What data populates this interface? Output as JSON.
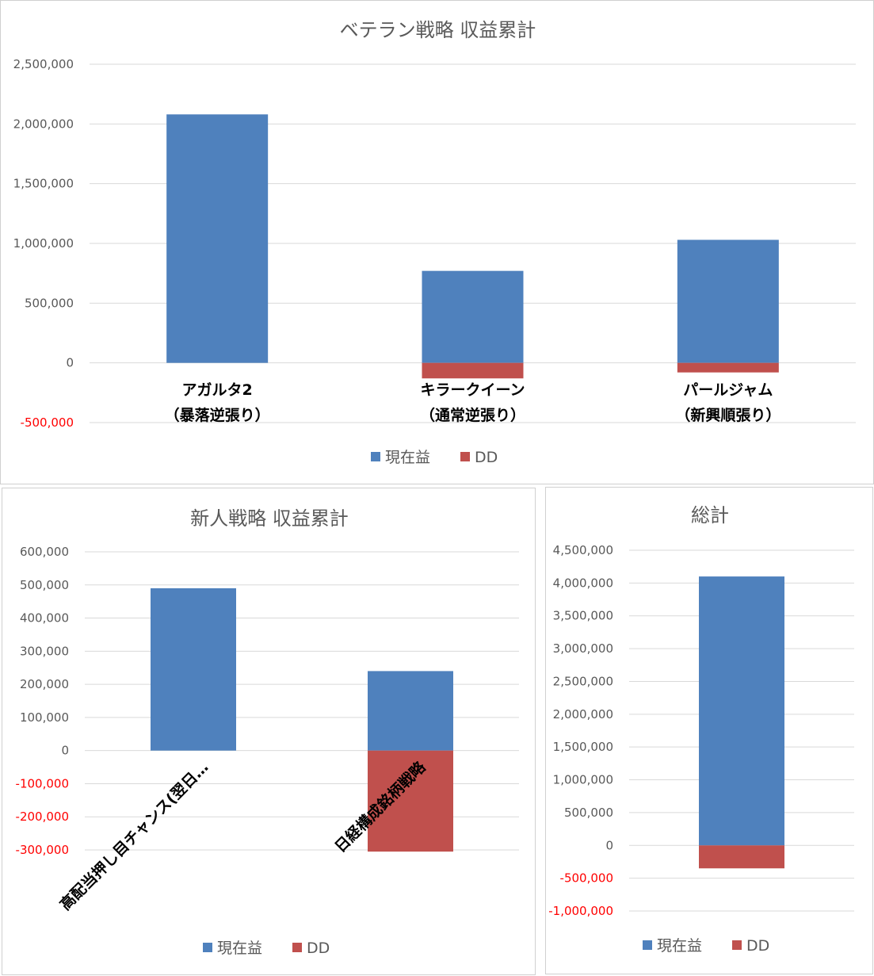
{
  "colors": {
    "current": "#4F81BD",
    "dd": "#C0504D",
    "grid": "#D9D9D9",
    "tick_positive": "#595959",
    "tick_negative": "#FF0000"
  },
  "legend": {
    "current": "現在益",
    "dd": "DD"
  },
  "chart_data": [
    {
      "type": "bar",
      "stacked": true,
      "title": "ベテラン戦略 収益累計",
      "categories": [
        [
          "アガルタ2",
          "（暴落逆張り）"
        ],
        [
          "キラークイーン",
          "（通常逆張り）"
        ],
        [
          "パールジャム",
          "（新興順張り）"
        ]
      ],
      "series": [
        {
          "name": "現在益",
          "values": [
            2080000,
            770000,
            1030000
          ]
        },
        {
          "name": "DD",
          "values": [
            0,
            -130000,
            -80000
          ]
        }
      ],
      "ylim": [
        -500000,
        2500000
      ],
      "yticks": [
        "2,500,000",
        "2,000,000",
        "1,500,000",
        "1,000,000",
        "500,000",
        "0",
        "-500,000"
      ],
      "grid": true,
      "legend_position": "bottom"
    },
    {
      "type": "bar",
      "stacked": true,
      "title": "新人戦略 収益累計",
      "categories": [
        [
          "高配当押し目チャンス(翌日…"
        ],
        [
          "日経構成銘柄戦略"
        ]
      ],
      "series": [
        {
          "name": "現在益",
          "values": [
            490000,
            240000
          ]
        },
        {
          "name": "DD",
          "values": [
            0,
            -305000
          ]
        }
      ],
      "ylim": [
        -300000,
        600000
      ],
      "yticks": [
        "600,000",
        "500,000",
        "400,000",
        "300,000",
        "200,000",
        "100,000",
        "0",
        "-100,000",
        "-200,000",
        "-300,000"
      ],
      "grid": true,
      "legend_position": "bottom"
    },
    {
      "type": "bar",
      "stacked": true,
      "title": "総計",
      "categories": [
        [
          ""
        ]
      ],
      "series": [
        {
          "name": "現在益",
          "values": [
            4100000
          ]
        },
        {
          "name": "DD",
          "values": [
            -350000
          ]
        }
      ],
      "ylim": [
        -1000000,
        4500000
      ],
      "yticks": [
        "4,500,000",
        "4,000,000",
        "3,500,000",
        "3,000,000",
        "2,500,000",
        "2,000,000",
        "1,500,000",
        "1,000,000",
        "500,000",
        "0",
        "-500,000",
        "-1,000,000"
      ],
      "grid": true,
      "legend_position": "bottom"
    }
  ]
}
